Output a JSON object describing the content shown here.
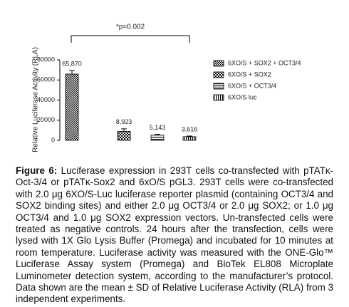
{
  "chart_data": {
    "type": "bar",
    "annotation": "*p=0.002",
    "ylabel": "Relative Luciferase Activity (RLA)",
    "categories": [
      "6XO/S + SOX2 + OCT3/4",
      "6XO/S + SOX2",
      "6XO/S + OCT3/4",
      "6XO/S luc"
    ],
    "values": [
      65870,
      8923,
      5143,
      3616
    ],
    "value_labels": [
      "65,870",
      "8,923",
      "5,143",
      "3,616"
    ],
    "errors": [
      3500,
      2500,
      800,
      600
    ],
    "ylim": [
      0,
      80000
    ],
    "yticks": [
      0,
      20000,
      40000,
      60000,
      80000
    ],
    "color": "#000000"
  },
  "caption": {
    "label": "Figure 6:",
    "text": "Luciferase expression in 293T cells co-transfected with pTATκ-Oct-3/4 or pTATκ-Sox2 and 6xO/S pGL3. 293T cells were co-transfected with 2.0 μg 6XO/S-Luc luciferase reporter plasmid (containing OCT3/4 and SOX2 binding sites) and either 2.0 μg OCT3/4 or 2.0 μg SOX2; or 1.0 μg OCT3/4 and 1.0 μg SOX2 expression vectors. Un-transfected cells were treated as negative controls. 24 hours after the transfection, cells were lysed with 1X Glo Lysis Buffer (Promega) and incubated for 10 minutes at room temperature. Luciferase activity was measured with the ONE-Glo™ Luciferase Assay system (Promega) and BioTek EL808 Microplate Luminometer detection system, according to the manufacturer’s protocol. Data shown are the mean ± SD of Relative Luciferase Activity (RLA) from 3 independent experiments."
  }
}
